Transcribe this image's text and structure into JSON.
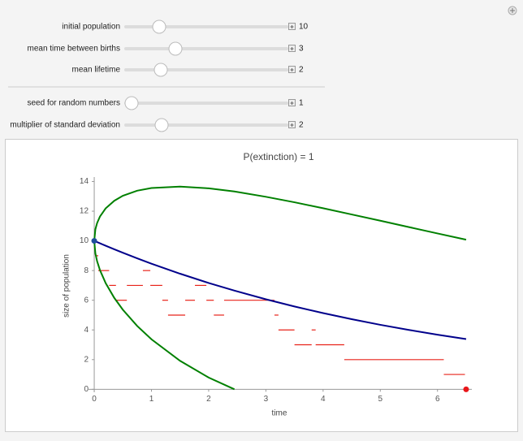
{
  "controls": [
    {
      "label": "initial population",
      "value": 10
    },
    {
      "label": "mean time between births",
      "value": 3
    },
    {
      "label": "mean lifetime",
      "value": 2
    },
    {
      "label": "seed for random numbers",
      "value": 1
    },
    {
      "label": "multiplier of standard deviation",
      "value": 2
    }
  ],
  "chart_data": {
    "type": "line",
    "title": "P(extinction) = 1",
    "x_label": "time",
    "y_label": "size of population",
    "xlim": [
      -0.1,
      6.6
    ],
    "ylim": [
      -0.2,
      14.3
    ],
    "xticks": [
      0,
      1,
      2,
      3,
      4,
      5,
      6
    ],
    "yticks": [
      0,
      2,
      4,
      6,
      8,
      10,
      12,
      14
    ],
    "x": [
      0,
      0.02,
      0.05,
      0.1,
      0.2,
      0.35,
      0.5,
      0.75,
      1,
      1.5,
      2,
      2.45,
      3,
      3.5,
      4,
      4.5,
      5,
      5.5,
      6,
      6.5
    ],
    "series": [
      {
        "color": "#008000",
        "values": [
          10,
          10.78,
          11.2,
          11.64,
          12.19,
          12.7,
          13.04,
          13.38,
          13.56,
          13.66,
          13.54,
          13.33,
          12.97,
          12.6,
          12.2,
          11.78,
          11.36,
          10.93,
          10.5,
          10.08
        ]
      },
      {
        "color": "#00008b",
        "values": [
          10,
          9.967,
          9.917,
          9.835,
          9.672,
          9.434,
          9.2,
          8.825,
          8.465,
          7.788,
          7.165,
          6.65,
          6.065,
          5.58,
          5.134,
          4.724,
          4.346,
          3.999,
          3.679,
          3.385
        ]
      },
      {
        "color": "#008000",
        "values": [
          10,
          9.15,
          8.63,
          8.03,
          7.15,
          6.16,
          5.36,
          4.27,
          3.37,
          1.92,
          0.79,
          0,
          null,
          null,
          null,
          null,
          null,
          null,
          null,
          null
        ]
      }
    ],
    "steps": {
      "color": "#e8231a",
      "start": [
        0,
        0.03,
        0.07,
        0.26,
        0.38,
        0.57,
        0.85,
        0.98,
        1.19,
        1.29,
        1.59,
        1.76,
        1.96,
        2.09,
        2.27,
        3.15,
        3.22,
        3.5,
        3.8,
        3.87,
        4.37,
        6.11
      ],
      "end": [
        0.03,
        0.07,
        0.26,
        0.38,
        0.57,
        0.85,
        0.98,
        1.19,
        1.29,
        1.59,
        1.76,
        1.96,
        2.09,
        2.27,
        3.15,
        3.22,
        3.5,
        3.8,
        3.87,
        4.37,
        6.11,
        6.48
      ],
      "values": [
        10,
        9,
        8,
        7,
        6,
        7,
        8,
        7,
        6,
        5,
        6,
        7,
        6,
        5,
        6,
        5,
        4,
        3,
        4,
        3,
        2,
        1
      ]
    },
    "markers": [
      {
        "x": 0,
        "y": 10,
        "color": "#1f4e9c"
      },
      {
        "x": 6.5,
        "y": 0,
        "color": "#e8161a"
      }
    ]
  }
}
